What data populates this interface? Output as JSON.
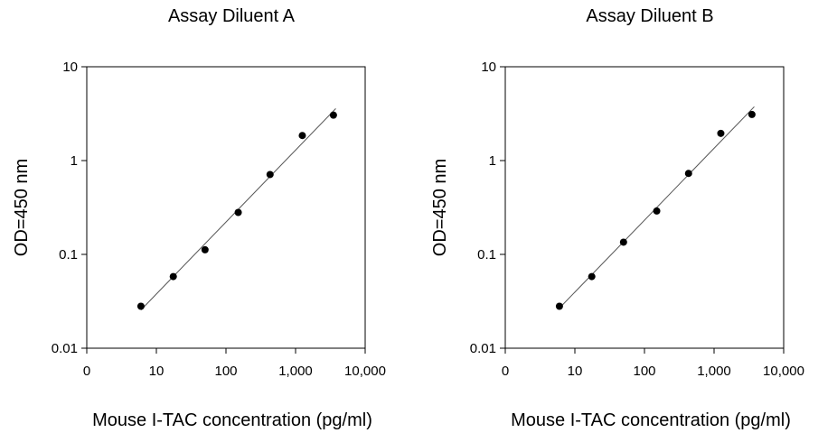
{
  "chart_data": [
    {
      "type": "scatter",
      "title": "Assay Diluent A",
      "xlabel": "Mouse I-TAC concentration (pg/ml)",
      "ylabel": "OD=450 nm",
      "xscale": "log",
      "yscale": "log",
      "xlim": [
        1,
        10000
      ],
      "ylim": [
        0.01,
        10
      ],
      "xticks": [
        "0",
        "10",
        "100",
        "1,000",
        "10,000"
      ],
      "yticks": [
        "0.01",
        "0.1",
        "1",
        "10"
      ],
      "grid": false,
      "legend": "none",
      "trendline": true,
      "series": [
        {
          "x": [
            6,
            17.5,
            50,
            150,
            430,
            1250,
            3500
          ],
          "y": [
            0.028,
            0.058,
            0.112,
            0.28,
            0.71,
            1.85,
            3.05
          ]
        }
      ]
    },
    {
      "type": "scatter",
      "title": "Assay Diluent B",
      "xlabel": "Mouse I-TAC concentration (pg/ml)",
      "ylabel": "OD=450 nm",
      "xscale": "log",
      "yscale": "log",
      "xlim": [
        1,
        10000
      ],
      "ylim": [
        0.01,
        10
      ],
      "xticks": [
        "0",
        "10",
        "100",
        "1,000",
        "10,000"
      ],
      "yticks": [
        "0.01",
        "0.1",
        "1",
        "10"
      ],
      "grid": false,
      "legend": "none",
      "trendline": true,
      "series": [
        {
          "x": [
            6,
            17.5,
            50,
            150,
            430,
            1250,
            3500
          ],
          "y": [
            0.028,
            0.058,
            0.135,
            0.29,
            0.73,
            1.95,
            3.1
          ]
        }
      ]
    }
  ]
}
